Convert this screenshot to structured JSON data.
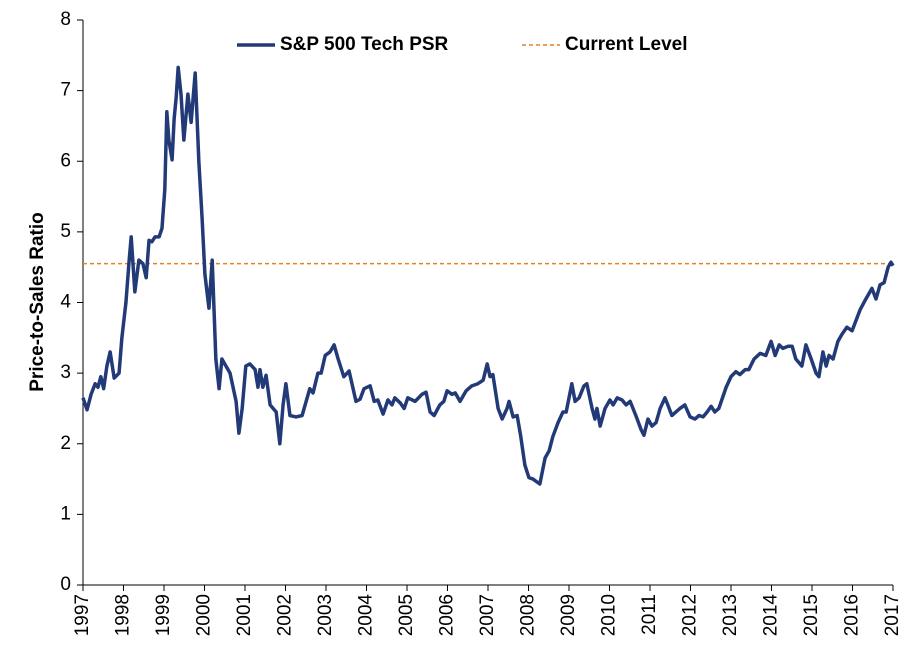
{
  "chart_data": {
    "type": "line",
    "y_label": "Price-to-Sales Ratio",
    "xlim": [
      1997,
      2017
    ],
    "xticks": [
      1997,
      1998,
      1999,
      2000,
      2001,
      2002,
      2003,
      2004,
      2005,
      2006,
      2007,
      2008,
      2009,
      2010,
      2011,
      2012,
      2013,
      2014,
      2015,
      2016,
      2017
    ],
    "ylim": [
      0,
      8
    ],
    "yticks": [
      0,
      1,
      2,
      3,
      4,
      5,
      6,
      7,
      8
    ],
    "grid": false,
    "legend": "top",
    "series": [
      {
        "name": "S&P 500 Tech PSR",
        "color": "#233a78",
        "x": [
          1997.0,
          1997.1,
          1997.2,
          1997.3,
          1997.37,
          1997.44,
          1997.51,
          1997.59,
          1997.67,
          1997.77,
          1997.89,
          1997.96,
          1998.06,
          1998.14,
          1998.19,
          1998.28,
          1998.38,
          1998.48,
          1998.56,
          1998.63,
          1998.7,
          1998.78,
          1998.88,
          1998.95,
          1999.02,
          1999.07,
          1999.12,
          1999.2,
          1999.25,
          1999.3,
          1999.35,
          1999.42,
          1999.49,
          1999.59,
          1999.67,
          1999.77,
          1999.86,
          1999.94,
          2000.01,
          2000.11,
          2000.19,
          2000.28,
          2000.36,
          2000.43,
          2000.53,
          2000.63,
          2000.78,
          2000.85,
          2000.93,
          2001.02,
          2001.12,
          2001.25,
          2001.32,
          2001.37,
          2001.44,
          2001.52,
          2001.62,
          2001.77,
          2001.86,
          2001.94,
          2002.01,
          2002.11,
          2002.26,
          2002.41,
          2002.51,
          2002.6,
          2002.68,
          2002.8,
          2002.88,
          2002.98,
          2003.1,
          2003.2,
          2003.3,
          2003.44,
          2003.57,
          2003.74,
          2003.84,
          2003.94,
          2004.09,
          2004.19,
          2004.28,
          2004.41,
          2004.53,
          2004.63,
          2004.7,
          2004.83,
          2004.93,
          2005.02,
          2005.2,
          2005.37,
          2005.47,
          2005.57,
          2005.67,
          2005.81,
          2005.91,
          2005.99,
          2006.11,
          2006.19,
          2006.31,
          2006.46,
          2006.6,
          2006.75,
          2006.88,
          2006.98,
          2007.05,
          2007.12,
          2007.25,
          2007.35,
          2007.47,
          2007.52,
          2007.62,
          2007.72,
          2007.81,
          2007.91,
          2008.01,
          2008.11,
          2008.28,
          2008.41,
          2008.51,
          2008.6,
          2008.73,
          2008.85,
          2008.93,
          2009.07,
          2009.15,
          2009.25,
          2009.37,
          2009.44,
          2009.57,
          2009.64,
          2009.69,
          2009.77,
          2009.89,
          2010.01,
          2010.09,
          2010.19,
          2010.31,
          2010.41,
          2010.51,
          2010.65,
          2010.78,
          2010.85,
          2010.95,
          2011.05,
          2011.15,
          2011.25,
          2011.37,
          2011.44,
          2011.54,
          2011.64,
          2011.74,
          2011.86,
          2011.99,
          2012.11,
          2012.21,
          2012.31,
          2012.41,
          2012.51,
          2012.6,
          2012.7,
          2012.88,
          2013.0,
          2013.12,
          2013.22,
          2013.35,
          2013.44,
          2013.57,
          2013.72,
          2013.86,
          2013.99,
          2014.09,
          2014.19,
          2014.28,
          2014.41,
          2014.51,
          2014.6,
          2014.75,
          2014.85,
          2014.98,
          2015.1,
          2015.17,
          2015.27,
          2015.35,
          2015.42,
          2015.52,
          2015.64,
          2015.74,
          2015.86,
          2015.99,
          2016.09,
          2016.19,
          2016.33,
          2016.48,
          2016.58,
          2016.68,
          2016.78,
          2016.88,
          2016.95,
          2017.0
        ],
        "values": [
          2.65,
          2.48,
          2.7,
          2.85,
          2.8,
          2.95,
          2.78,
          3.1,
          3.3,
          2.93,
          3.0,
          3.5,
          4.0,
          4.6,
          4.93,
          4.15,
          4.6,
          4.55,
          4.35,
          4.88,
          4.86,
          4.93,
          4.93,
          5.05,
          5.6,
          6.7,
          6.3,
          6.02,
          6.6,
          6.9,
          7.33,
          6.95,
          6.3,
          6.95,
          6.55,
          7.25,
          6.0,
          5.2,
          4.4,
          3.92,
          4.6,
          3.2,
          2.78,
          3.2,
          3.1,
          3.0,
          2.6,
          2.15,
          2.5,
          3.1,
          3.13,
          3.05,
          2.8,
          3.05,
          2.8,
          2.97,
          2.55,
          2.45,
          2.0,
          2.55,
          2.85,
          2.4,
          2.38,
          2.4,
          2.6,
          2.78,
          2.72,
          3.0,
          3.0,
          3.25,
          3.3,
          3.4,
          3.2,
          2.95,
          3.03,
          2.6,
          2.63,
          2.78,
          2.82,
          2.6,
          2.62,
          2.42,
          2.62,
          2.55,
          2.65,
          2.58,
          2.5,
          2.65,
          2.6,
          2.7,
          2.73,
          2.45,
          2.4,
          2.55,
          2.6,
          2.75,
          2.7,
          2.72,
          2.6,
          2.75,
          2.82,
          2.85,
          2.9,
          3.13,
          2.95,
          2.98,
          2.5,
          2.35,
          2.5,
          2.6,
          2.38,
          2.4,
          2.1,
          1.7,
          1.52,
          1.5,
          1.43,
          1.8,
          1.9,
          2.1,
          2.3,
          2.45,
          2.45,
          2.85,
          2.6,
          2.65,
          2.82,
          2.85,
          2.5,
          2.35,
          2.5,
          2.25,
          2.5,
          2.62,
          2.55,
          2.65,
          2.62,
          2.55,
          2.6,
          2.4,
          2.2,
          2.12,
          2.35,
          2.25,
          2.3,
          2.5,
          2.65,
          2.55,
          2.4,
          2.45,
          2.5,
          2.55,
          2.38,
          2.35,
          2.4,
          2.38,
          2.45,
          2.53,
          2.45,
          2.5,
          2.8,
          2.95,
          3.02,
          2.98,
          3.05,
          3.05,
          3.2,
          3.28,
          3.25,
          3.45,
          3.25,
          3.4,
          3.35,
          3.38,
          3.38,
          3.2,
          3.1,
          3.4,
          3.2,
          3.0,
          2.95,
          3.3,
          3.1,
          3.25,
          3.2,
          3.45,
          3.55,
          3.65,
          3.6,
          3.75,
          3.9,
          4.05,
          4.2,
          4.05,
          4.25,
          4.28,
          4.5,
          4.57,
          4.52
        ]
      }
    ],
    "reference_line": {
      "name": "Current Level",
      "value": 4.55,
      "color": "#e8821e"
    }
  }
}
